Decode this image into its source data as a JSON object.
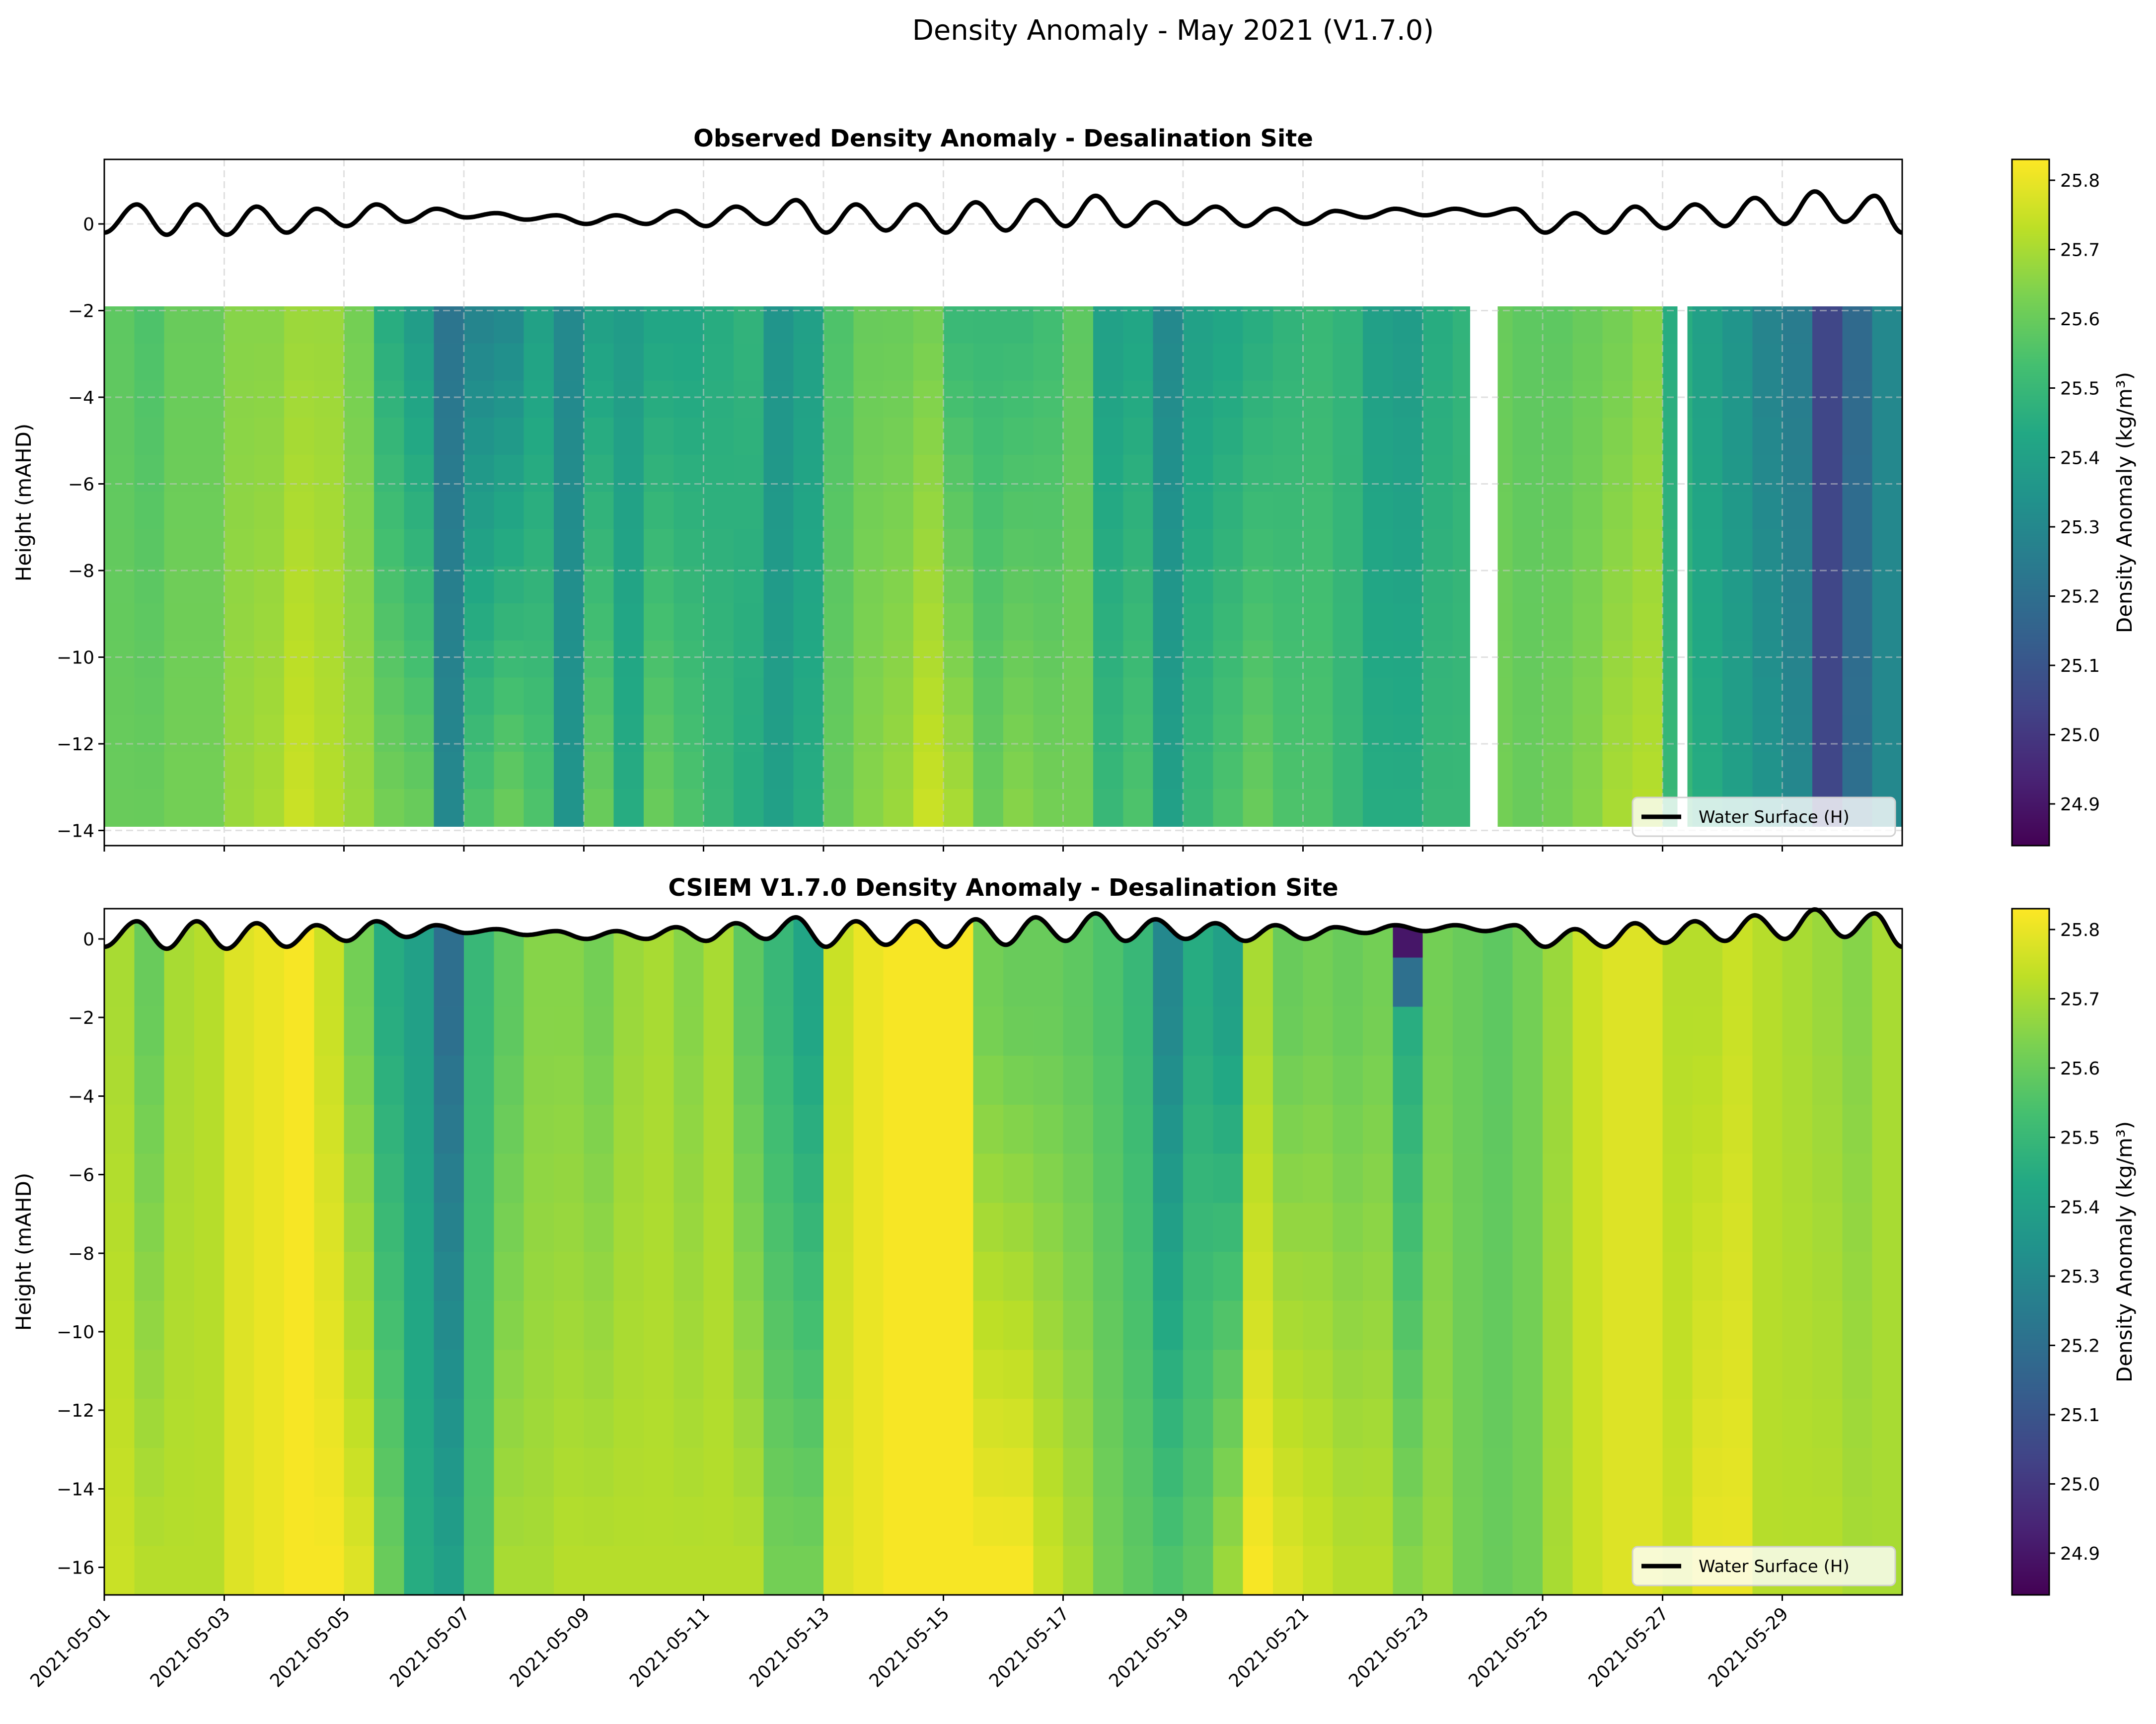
{
  "figure": {
    "title": "Density Anomaly - May 2021 (V1.7.0)"
  },
  "colorbar": {
    "colormap": "viridis",
    "label": "Density Anomaly (kg/m³)",
    "range": [
      24.84,
      25.83
    ],
    "ticks": [
      "24.9",
      "25.0",
      "25.1",
      "25.2",
      "25.3",
      "25.4",
      "25.5",
      "25.6",
      "25.7",
      "25.8"
    ]
  },
  "water_surface": {
    "name": "Water Surface (H)",
    "color": "#000000",
    "points": [
      [
        "2021-05-01 00:00",
        -0.2
      ],
      [
        "2021-05-01 13:00",
        0.45
      ],
      [
        "2021-05-02 01:00",
        -0.25
      ],
      [
        "2021-05-02 13:00",
        0.45
      ],
      [
        "2021-05-03 01:00",
        -0.25
      ],
      [
        "2021-05-03 13:00",
        0.4
      ],
      [
        "2021-05-04 01:00",
        -0.2
      ],
      [
        "2021-05-04 13:00",
        0.35
      ],
      [
        "2021-05-05 01:00",
        -0.05
      ],
      [
        "2021-05-05 13:00",
        0.45
      ],
      [
        "2021-05-06 01:00",
        0.05
      ],
      [
        "2021-05-06 13:00",
        0.35
      ],
      [
        "2021-05-07 01:00",
        0.15
      ],
      [
        "2021-05-07 13:00",
        0.25
      ],
      [
        "2021-05-08 01:00",
        0.1
      ],
      [
        "2021-05-08 13:00",
        0.2
      ],
      [
        "2021-05-09 01:00",
        0.0
      ],
      [
        "2021-05-09 13:00",
        0.2
      ],
      [
        "2021-05-10 01:00",
        0.0
      ],
      [
        "2021-05-10 13:00",
        0.3
      ],
      [
        "2021-05-11 01:00",
        -0.05
      ],
      [
        "2021-05-11 13:00",
        0.4
      ],
      [
        "2021-05-12 01:00",
        0.0
      ],
      [
        "2021-05-12 13:00",
        0.55
      ],
      [
        "2021-05-13 01:00",
        -0.2
      ],
      [
        "2021-05-13 13:00",
        0.45
      ],
      [
        "2021-05-14 01:00",
        -0.15
      ],
      [
        "2021-05-14 13:00",
        0.45
      ],
      [
        "2021-05-15 01:00",
        -0.2
      ],
      [
        "2021-05-15 13:00",
        0.5
      ],
      [
        "2021-05-16 01:00",
        -0.15
      ],
      [
        "2021-05-16 13:00",
        0.55
      ],
      [
        "2021-05-17 01:00",
        -0.05
      ],
      [
        "2021-05-17 13:00",
        0.65
      ],
      [
        "2021-05-18 01:00",
        -0.05
      ],
      [
        "2021-05-18 13:00",
        0.5
      ],
      [
        "2021-05-19 01:00",
        0.0
      ],
      [
        "2021-05-19 13:00",
        0.4
      ],
      [
        "2021-05-20 01:00",
        -0.05
      ],
      [
        "2021-05-20 13:00",
        0.35
      ],
      [
        "2021-05-21 01:00",
        0.0
      ],
      [
        "2021-05-21 13:00",
        0.3
      ],
      [
        "2021-05-22 01:00",
        0.15
      ],
      [
        "2021-05-22 13:00",
        0.35
      ],
      [
        "2021-05-23 01:00",
        0.2
      ],
      [
        "2021-05-23 13:00",
        0.35
      ],
      [
        "2021-05-24 01:00",
        0.2
      ],
      [
        "2021-05-24 13:00",
        0.35
      ],
      [
        "2021-05-25 01:00",
        -0.2
      ],
      [
        "2021-05-25 13:00",
        0.25
      ],
      [
        "2021-05-26 01:00",
        -0.2
      ],
      [
        "2021-05-26 13:00",
        0.4
      ],
      [
        "2021-05-27 01:00",
        -0.1
      ],
      [
        "2021-05-27 13:00",
        0.45
      ],
      [
        "2021-05-28 01:00",
        -0.05
      ],
      [
        "2021-05-28 13:00",
        0.6
      ],
      [
        "2021-05-29 01:00",
        0.0
      ],
      [
        "2021-05-29 13:00",
        0.75
      ],
      [
        "2021-05-30 01:00",
        0.05
      ],
      [
        "2021-05-30 13:00",
        0.65
      ],
      [
        "2021-05-31 00:00",
        -0.2
      ]
    ]
  },
  "chart_data": [
    {
      "type": "heatmap",
      "title": "Observed Density Anomaly - Desalination Site",
      "ylabel": "Height (mAHD)",
      "xlim": [
        "2021-05-01 00:00",
        "2021-05-31 00:00"
      ],
      "ylim": [
        -14.35,
        1.49
      ],
      "grid": true,
      "legend": {
        "placement": "lower right",
        "entries": [
          "Water Surface (H)"
        ]
      },
      "xticks": [
        "2021-05-01",
        "2021-05-03",
        "2021-05-05",
        "2021-05-07",
        "2021-05-09",
        "2021-05-11",
        "2021-05-13",
        "2021-05-15",
        "2021-05-17",
        "2021-05-19",
        "2021-05-21",
        "2021-05-23",
        "2021-05-25",
        "2021-05-27",
        "2021-05-29"
      ],
      "yticks": [
        "0",
        "−2",
        "−4",
        "−6",
        "−8",
        "−10",
        "−12",
        "−14"
      ],
      "data_extent_m": [
        -1.9,
        -13.9
      ],
      "gaps": [
        [
          "2021-05-23 19:00",
          "2021-05-24 06:00"
        ],
        [
          "2021-05-27 06:00",
          "2021-05-27 10:00"
        ]
      ],
      "times": [
        "2021-05-01 00:00",
        "2021-05-01 12:00",
        "2021-05-02 00:00",
        "2021-05-02 12:00",
        "2021-05-03 00:00",
        "2021-05-03 12:00",
        "2021-05-04 00:00",
        "2021-05-04 12:00",
        "2021-05-05 00:00",
        "2021-05-05 12:00",
        "2021-05-06 00:00",
        "2021-05-06 12:00",
        "2021-05-07 00:00",
        "2021-05-07 12:00",
        "2021-05-08 00:00",
        "2021-05-08 12:00",
        "2021-05-09 00:00",
        "2021-05-09 12:00",
        "2021-05-10 00:00",
        "2021-05-10 12:00",
        "2021-05-11 00:00",
        "2021-05-11 12:00",
        "2021-05-12 00:00",
        "2021-05-12 12:00",
        "2021-05-13 00:00",
        "2021-05-13 12:00",
        "2021-05-14 00:00",
        "2021-05-14 12:00",
        "2021-05-15 00:00",
        "2021-05-15 12:00",
        "2021-05-16 00:00",
        "2021-05-16 12:00",
        "2021-05-17 00:00",
        "2021-05-17 12:00",
        "2021-05-18 00:00",
        "2021-05-18 12:00",
        "2021-05-19 00:00",
        "2021-05-19 12:00",
        "2021-05-20 00:00",
        "2021-05-20 12:00",
        "2021-05-21 00:00",
        "2021-05-21 12:00",
        "2021-05-22 00:00",
        "2021-05-22 12:00",
        "2021-05-23 00:00",
        "2021-05-23 12:00",
        "2021-05-24 00:00",
        "2021-05-24 12:00",
        "2021-05-25 00:00",
        "2021-05-25 12:00",
        "2021-05-26 00:00",
        "2021-05-26 12:00",
        "2021-05-27 00:00",
        "2021-05-27 12:00",
        "2021-05-28 00:00",
        "2021-05-28 12:00",
        "2021-05-29 00:00",
        "2021-05-29 12:00",
        "2021-05-30 00:00",
        "2021-05-30 12:00"
      ],
      "depth_levels": [
        -2,
        -13.5
      ],
      "values": [
        [
          25.58,
          25.55,
          25.6,
          25.6,
          25.65,
          25.65,
          25.68,
          25.68,
          25.62,
          25.45,
          25.38,
          25.22,
          25.28,
          25.3,
          25.4,
          25.3,
          25.4,
          25.38,
          25.42,
          25.42,
          25.45,
          25.48,
          25.35,
          25.4,
          25.55,
          25.6,
          25.6,
          25.62,
          25.5,
          25.5,
          25.5,
          25.52,
          25.58,
          25.4,
          25.42,
          25.3,
          25.4,
          25.42,
          25.45,
          25.48,
          25.5,
          25.48,
          25.4,
          25.38,
          25.45,
          25.48,
          25.6,
          25.58,
          25.58,
          25.6,
          25.62,
          25.65,
          25.45,
          25.4,
          25.35,
          25.28,
          25.25,
          25.05,
          25.18,
          25.3
        ],
        [
          25.6,
          25.6,
          25.62,
          25.62,
          25.68,
          25.7,
          25.75,
          25.72,
          25.68,
          25.62,
          25.6,
          25.3,
          25.55,
          25.6,
          25.55,
          25.35,
          25.6,
          25.45,
          25.6,
          25.55,
          25.5,
          25.45,
          25.4,
          25.45,
          25.6,
          25.65,
          25.68,
          25.75,
          25.7,
          25.6,
          25.65,
          25.62,
          25.62,
          25.5,
          25.55,
          25.4,
          25.5,
          25.55,
          25.6,
          25.55,
          25.55,
          25.5,
          25.45,
          25.45,
          25.5,
          25.5,
          25.62,
          25.6,
          25.62,
          25.65,
          25.7,
          25.72,
          25.5,
          25.45,
          25.4,
          25.35,
          25.3,
          25.05,
          25.2,
          25.3
        ]
      ]
    },
    {
      "type": "heatmap",
      "title": "CSIEM V1.7.0 Density Anomaly - Desalination Site",
      "ylabel": "Height (mAHD)",
      "xlim": [
        "2021-05-01 00:00",
        "2021-05-31 00:00"
      ],
      "ylim": [
        -16.7,
        0.77
      ],
      "grid": false,
      "legend": {
        "placement": "lower right",
        "entries": [
          "Water Surface (H)"
        ]
      },
      "xticks": [
        "2021-05-01",
        "2021-05-03",
        "2021-05-05",
        "2021-05-07",
        "2021-05-09",
        "2021-05-11",
        "2021-05-13",
        "2021-05-15",
        "2021-05-17",
        "2021-05-19",
        "2021-05-21",
        "2021-05-23",
        "2021-05-25",
        "2021-05-27",
        "2021-05-29"
      ],
      "yticks": [
        "0",
        "−2",
        "−4",
        "−6",
        "−8",
        "−10",
        "−12",
        "−14",
        "−16"
      ],
      "times": [
        "2021-05-01 00:00",
        "2021-05-01 12:00",
        "2021-05-02 00:00",
        "2021-05-02 12:00",
        "2021-05-03 00:00",
        "2021-05-03 12:00",
        "2021-05-04 00:00",
        "2021-05-04 12:00",
        "2021-05-05 00:00",
        "2021-05-05 12:00",
        "2021-05-06 00:00",
        "2021-05-06 12:00",
        "2021-05-07 00:00",
        "2021-05-07 12:00",
        "2021-05-08 00:00",
        "2021-05-08 12:00",
        "2021-05-09 00:00",
        "2021-05-09 12:00",
        "2021-05-10 00:00",
        "2021-05-10 12:00",
        "2021-05-11 00:00",
        "2021-05-11 12:00",
        "2021-05-12 00:00",
        "2021-05-12 12:00",
        "2021-05-13 00:00",
        "2021-05-13 12:00",
        "2021-05-14 00:00",
        "2021-05-14 12:00",
        "2021-05-15 00:00",
        "2021-05-15 12:00",
        "2021-05-16 00:00",
        "2021-05-16 12:00",
        "2021-05-17 00:00",
        "2021-05-17 12:00",
        "2021-05-18 00:00",
        "2021-05-18 12:00",
        "2021-05-19 00:00",
        "2021-05-19 12:00",
        "2021-05-20 00:00",
        "2021-05-20 12:00",
        "2021-05-21 00:00",
        "2021-05-21 12:00",
        "2021-05-22 00:00",
        "2021-05-22 12:00",
        "2021-05-23 00:00",
        "2021-05-23 12:00",
        "2021-05-24 00:00",
        "2021-05-24 12:00",
        "2021-05-25 00:00",
        "2021-05-25 12:00",
        "2021-05-26 00:00",
        "2021-05-26 12:00",
        "2021-05-27 00:00",
        "2021-05-27 12:00",
        "2021-05-28 00:00",
        "2021-05-28 12:00",
        "2021-05-29 00:00",
        "2021-05-29 12:00",
        "2021-05-30 00:00",
        "2021-05-30 12:00"
      ],
      "depth_levels": [
        0,
        -2,
        -16
      ],
      "values": [
        [
          25.7,
          25.6,
          25.7,
          25.72,
          25.78,
          25.8,
          25.82,
          25.75,
          25.62,
          25.45,
          25.4,
          25.2,
          25.5,
          25.58,
          25.65,
          25.65,
          25.62,
          25.68,
          25.7,
          25.65,
          25.7,
          25.58,
          25.5,
          25.42,
          25.75,
          25.8,
          25.82,
          25.82,
          25.82,
          25.62,
          25.6,
          25.6,
          25.58,
          25.55,
          25.5,
          25.3,
          25.45,
          25.4,
          25.7,
          25.6,
          25.62,
          25.6,
          25.62,
          24.9,
          25.62,
          25.6,
          25.58,
          25.62,
          25.68,
          25.75,
          25.78,
          25.78,
          25.72,
          25.72,
          25.75,
          25.72,
          25.7,
          25.68,
          25.65,
          25.7
        ],
        [
          25.7,
          25.6,
          25.7,
          25.72,
          25.78,
          25.8,
          25.82,
          25.75,
          25.62,
          25.45,
          25.4,
          25.2,
          25.5,
          25.58,
          25.65,
          25.65,
          25.62,
          25.68,
          25.7,
          25.65,
          25.7,
          25.58,
          25.5,
          25.42,
          25.75,
          25.8,
          25.82,
          25.82,
          25.82,
          25.62,
          25.6,
          25.6,
          25.58,
          25.55,
          25.5,
          25.3,
          25.45,
          25.4,
          25.7,
          25.6,
          25.62,
          25.6,
          25.62,
          25.45,
          25.62,
          25.6,
          25.58,
          25.62,
          25.68,
          25.75,
          25.78,
          25.78,
          25.72,
          25.72,
          25.75,
          25.72,
          25.7,
          25.68,
          25.65,
          25.7
        ],
        [
          25.75,
          25.72,
          25.72,
          25.72,
          25.78,
          25.8,
          25.82,
          25.82,
          25.78,
          25.6,
          25.45,
          25.4,
          25.55,
          25.7,
          25.7,
          25.72,
          25.72,
          25.72,
          25.72,
          25.72,
          25.72,
          25.72,
          25.62,
          25.62,
          25.78,
          25.8,
          25.82,
          25.82,
          25.82,
          25.82,
          25.82,
          25.75,
          25.7,
          25.62,
          25.58,
          25.55,
          25.58,
          25.68,
          25.82,
          25.78,
          25.75,
          25.72,
          25.72,
          25.65,
          25.68,
          25.62,
          25.6,
          25.62,
          25.7,
          25.75,
          25.78,
          25.78,
          25.75,
          25.8,
          25.8,
          25.72,
          25.72,
          25.72,
          25.7,
          25.7
        ]
      ]
    }
  ]
}
